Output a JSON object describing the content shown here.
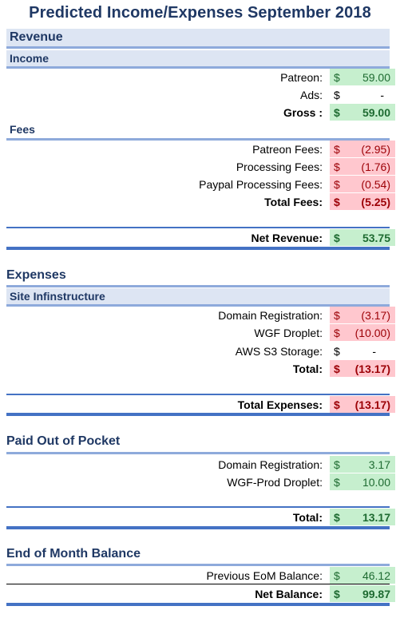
{
  "title": "Predicted Income/Expenses September 2018",
  "revenue": {
    "heading": "Revenue",
    "income": {
      "heading": "Income",
      "rows": [
        {
          "label": "Patreon:",
          "currency": "$",
          "amount": "59.00"
        },
        {
          "label": "Ads:",
          "currency": "$",
          "amount": "-"
        }
      ],
      "gross": {
        "label": "Gross :",
        "currency": "$",
        "amount": "59.00"
      }
    },
    "fees": {
      "heading": "Fees",
      "rows": [
        {
          "label": "Patreon Fees:",
          "currency": "$",
          "amount": "(2.95)"
        },
        {
          "label": "Processing Fees:",
          "currency": "$",
          "amount": "(1.76)"
        },
        {
          "label": "Paypal Processing Fees:",
          "currency": "$",
          "amount": "(0.54)"
        }
      ],
      "total": {
        "label": "Total Fees:",
        "currency": "$",
        "amount": "(5.25)"
      }
    },
    "net": {
      "label": "Net Revenue:",
      "currency": "$",
      "amount": "53.75"
    }
  },
  "expenses": {
    "heading": "Expenses",
    "site": {
      "heading": "Site Infinstructure",
      "rows": [
        {
          "label": "Domain Registration:",
          "currency": "$",
          "amount": "(3.17)"
        },
        {
          "label": "WGF Droplet:",
          "currency": "$",
          "amount": "(10.00)"
        },
        {
          "label": "AWS S3 Storage:",
          "currency": "$",
          "amount": "-"
        }
      ],
      "total": {
        "label": "Total:",
        "currency": "$",
        "amount": "(13.17)"
      }
    },
    "total": {
      "label": "Total Expenses:",
      "currency": "$",
      "amount": "(13.17)"
    }
  },
  "pocket": {
    "heading": "Paid Out of Pocket",
    "rows": [
      {
        "label": "Domain Registration:",
        "currency": "$",
        "amount": "3.17"
      },
      {
        "label": "WGF-Prod Droplet:",
        "currency": "$",
        "amount": "10.00"
      }
    ],
    "total": {
      "label": "Total:",
      "currency": "$",
      "amount": "13.17"
    }
  },
  "balance": {
    "heading": "End of Month Balance",
    "previous": {
      "label": "Previous EoM Balance:",
      "currency": "$",
      "amount": "46.12"
    },
    "net": {
      "label": "Net Balance:",
      "currency": "$",
      "amount": "99.87"
    }
  },
  "colors": {
    "heading_text": "#1f3864",
    "positive_fill": "#c6efce",
    "negative_fill": "#ffc7ce"
  }
}
